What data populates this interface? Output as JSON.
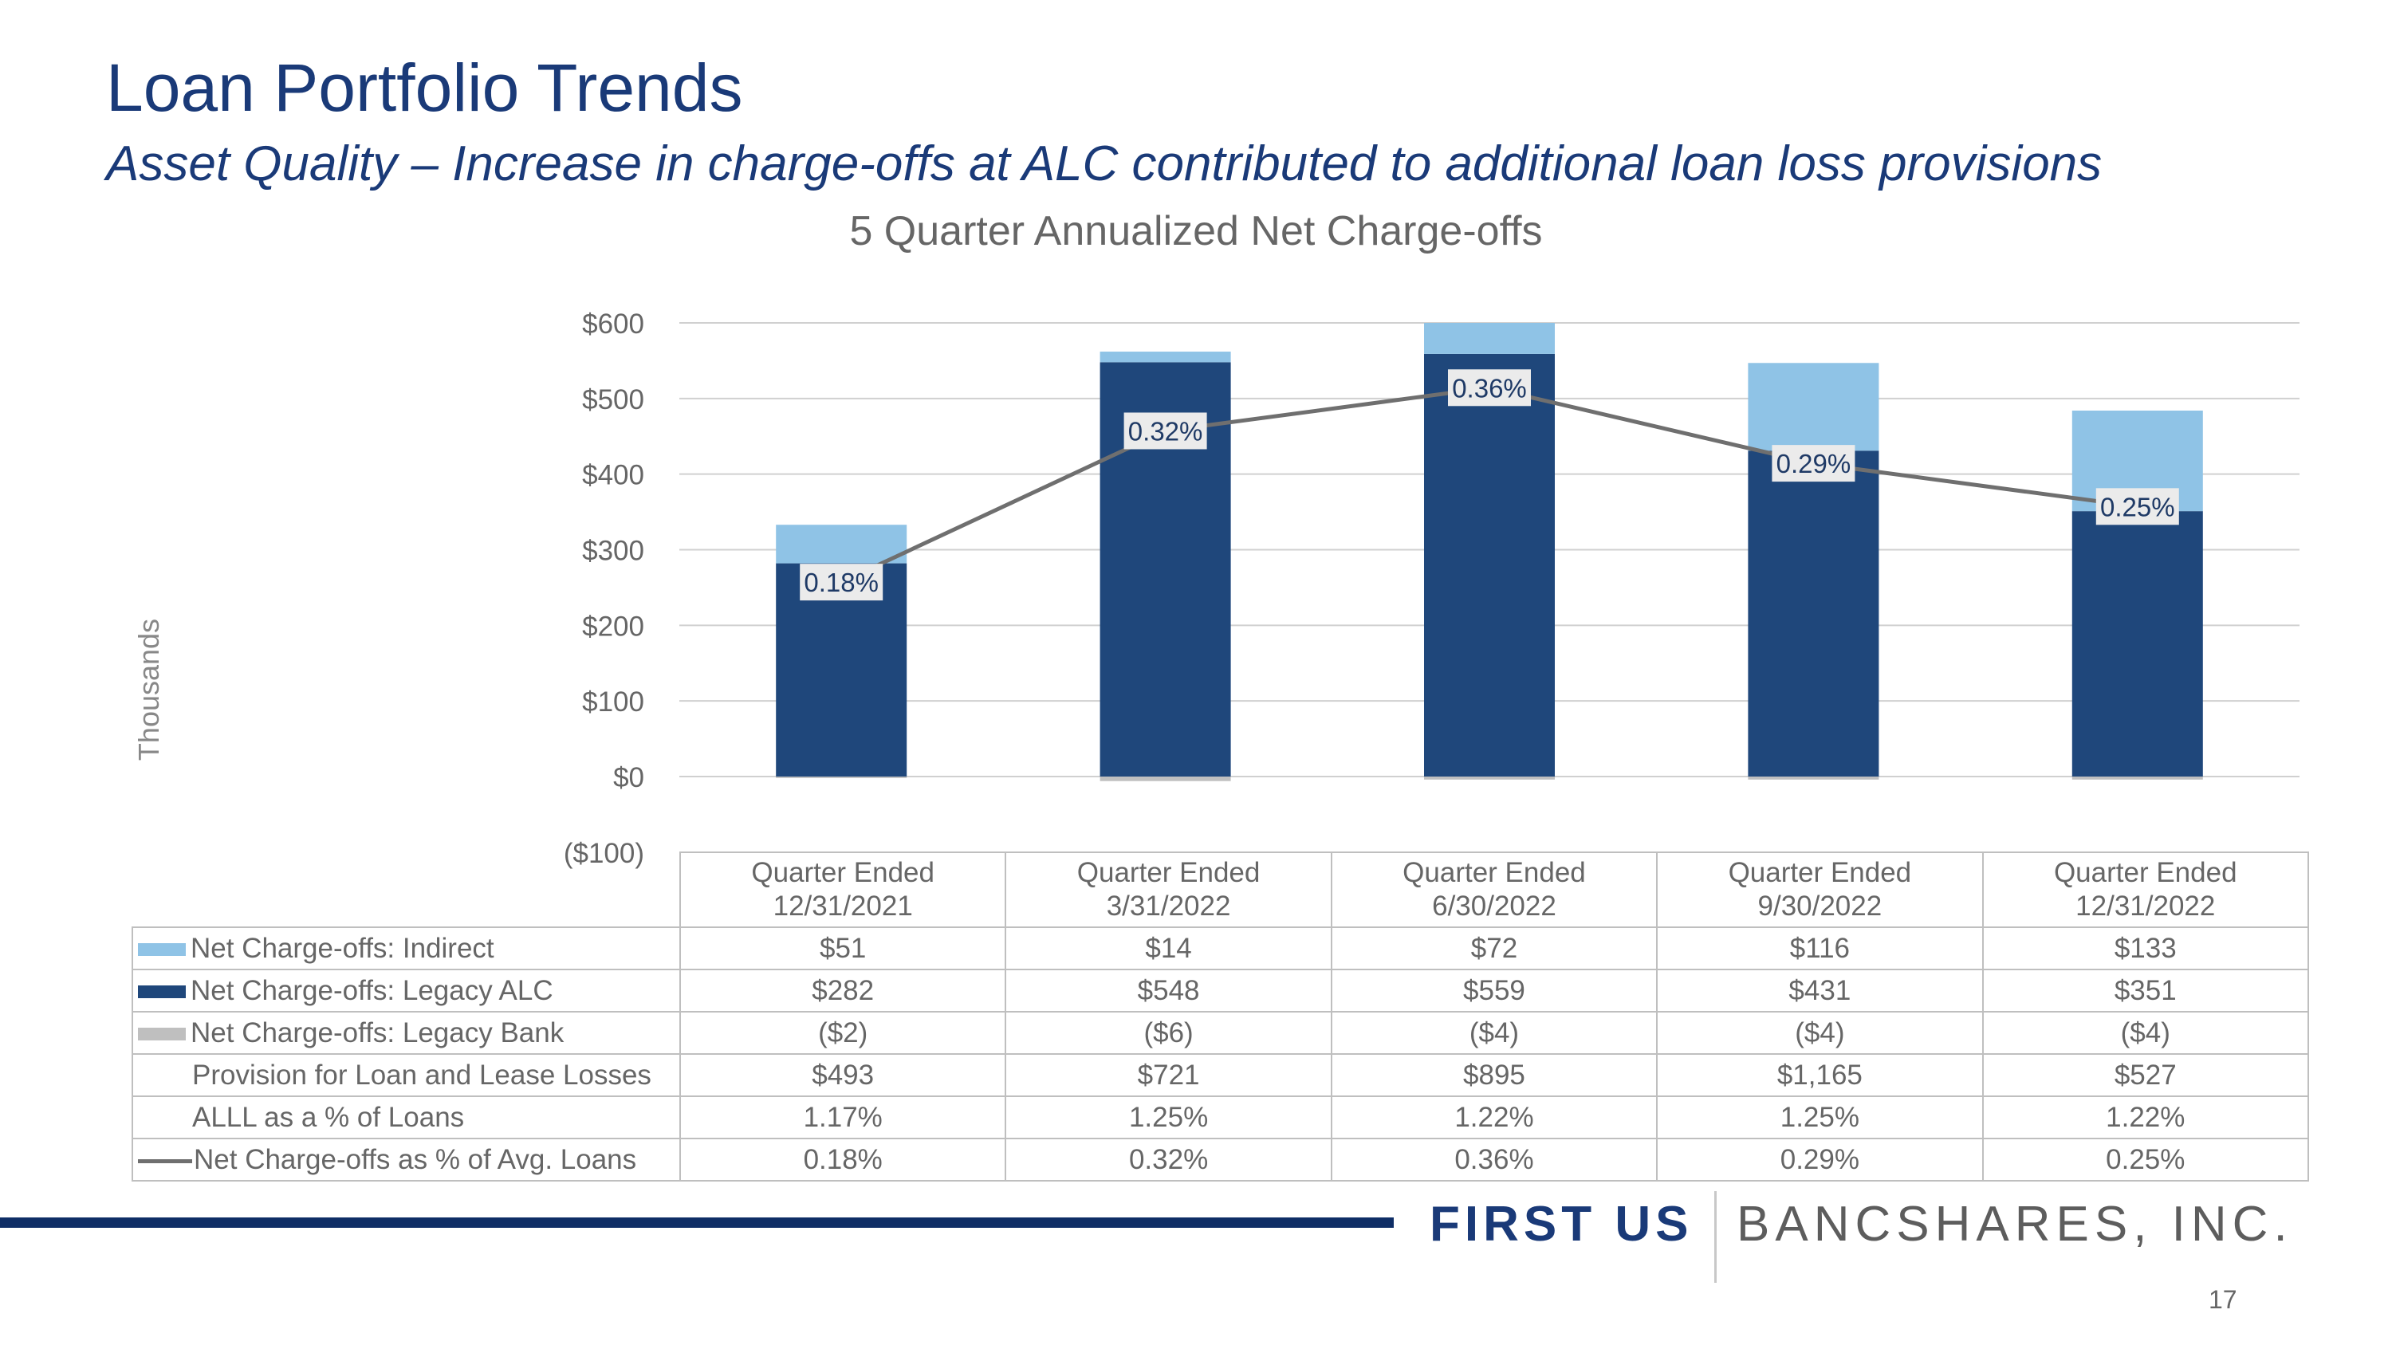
{
  "header": {
    "title": "Loan Portfolio Trends",
    "subtitle": "Asset Quality – Increase in charge-offs at ALC contributed to additional loan loss provisions"
  },
  "chart_data": {
    "type": "bar",
    "stacked": true,
    "title": "5 Quarter Annualized Net Charge-offs",
    "ylabel": "Thousands",
    "xlabel": "",
    "ylim": [
      -100,
      600
    ],
    "yticks": [
      600,
      500,
      400,
      300,
      200,
      100,
      0,
      -100
    ],
    "ytick_labels": [
      "$600",
      "$500",
      "$400",
      "$300",
      "$200",
      "$100",
      "$0",
      "($100)"
    ],
    "grid": true,
    "categories": [
      "Quarter Ended 12/31/2021",
      "Quarter Ended 3/31/2022",
      "Quarter Ended 6/30/2022",
      "Quarter Ended 9/30/2022",
      "Quarter Ended 12/31/2022"
    ],
    "category_lines": [
      [
        "Quarter Ended",
        "12/31/2021"
      ],
      [
        "Quarter Ended",
        "3/31/2022"
      ],
      [
        "Quarter Ended",
        "6/30/2022"
      ],
      [
        "Quarter Ended",
        "9/30/2022"
      ],
      [
        "Quarter Ended",
        "12/31/2022"
      ]
    ],
    "series": [
      {
        "name": "Net Charge-offs: Indirect",
        "type": "bar",
        "color": "#8fc3e6",
        "values": [
          51,
          14,
          72,
          116,
          133
        ],
        "labels": [
          "$51",
          "$14",
          "$72",
          "$116",
          "$133"
        ]
      },
      {
        "name": "Net Charge-offs: Legacy ALC",
        "type": "bar",
        "color": "#1f477b",
        "values": [
          282,
          548,
          559,
          431,
          351
        ],
        "labels": [
          "$282",
          "$548",
          "$559",
          "$431",
          "$351"
        ]
      },
      {
        "name": "Net Charge-offs: Legacy Bank",
        "type": "bar",
        "color": "#bfbfbf",
        "values": [
          -2,
          -6,
          -4,
          -4,
          -4
        ],
        "labels": [
          "($2)",
          "($6)",
          "($4)",
          "($4)",
          "($4)"
        ]
      },
      {
        "name": "Provision for Loan and Lease Losses",
        "type": "table",
        "values": [
          493,
          721,
          895,
          1165,
          527
        ],
        "labels": [
          "$493",
          "$721",
          "$895",
          "$1,165",
          "$527"
        ]
      },
      {
        "name": "ALLL as a % of Loans",
        "type": "table",
        "values": [
          1.17,
          1.25,
          1.22,
          1.25,
          1.22
        ],
        "labels": [
          "1.17%",
          "1.25%",
          "1.22%",
          "1.25%",
          "1.22%"
        ]
      },
      {
        "name": "Net Charge-offs as % of Avg. Loans",
        "type": "line",
        "color": "#6f6f6f",
        "values": [
          0.18,
          0.32,
          0.36,
          0.29,
          0.25
        ],
        "labels": [
          "0.18%",
          "0.32%",
          "0.36%",
          "0.29%",
          "0.25%"
        ],
        "axis_max": 0.42
      }
    ]
  },
  "branding": {
    "company_first": "FIRST US",
    "company_rest": "BANCSHARES, INC."
  },
  "page_number": "17"
}
